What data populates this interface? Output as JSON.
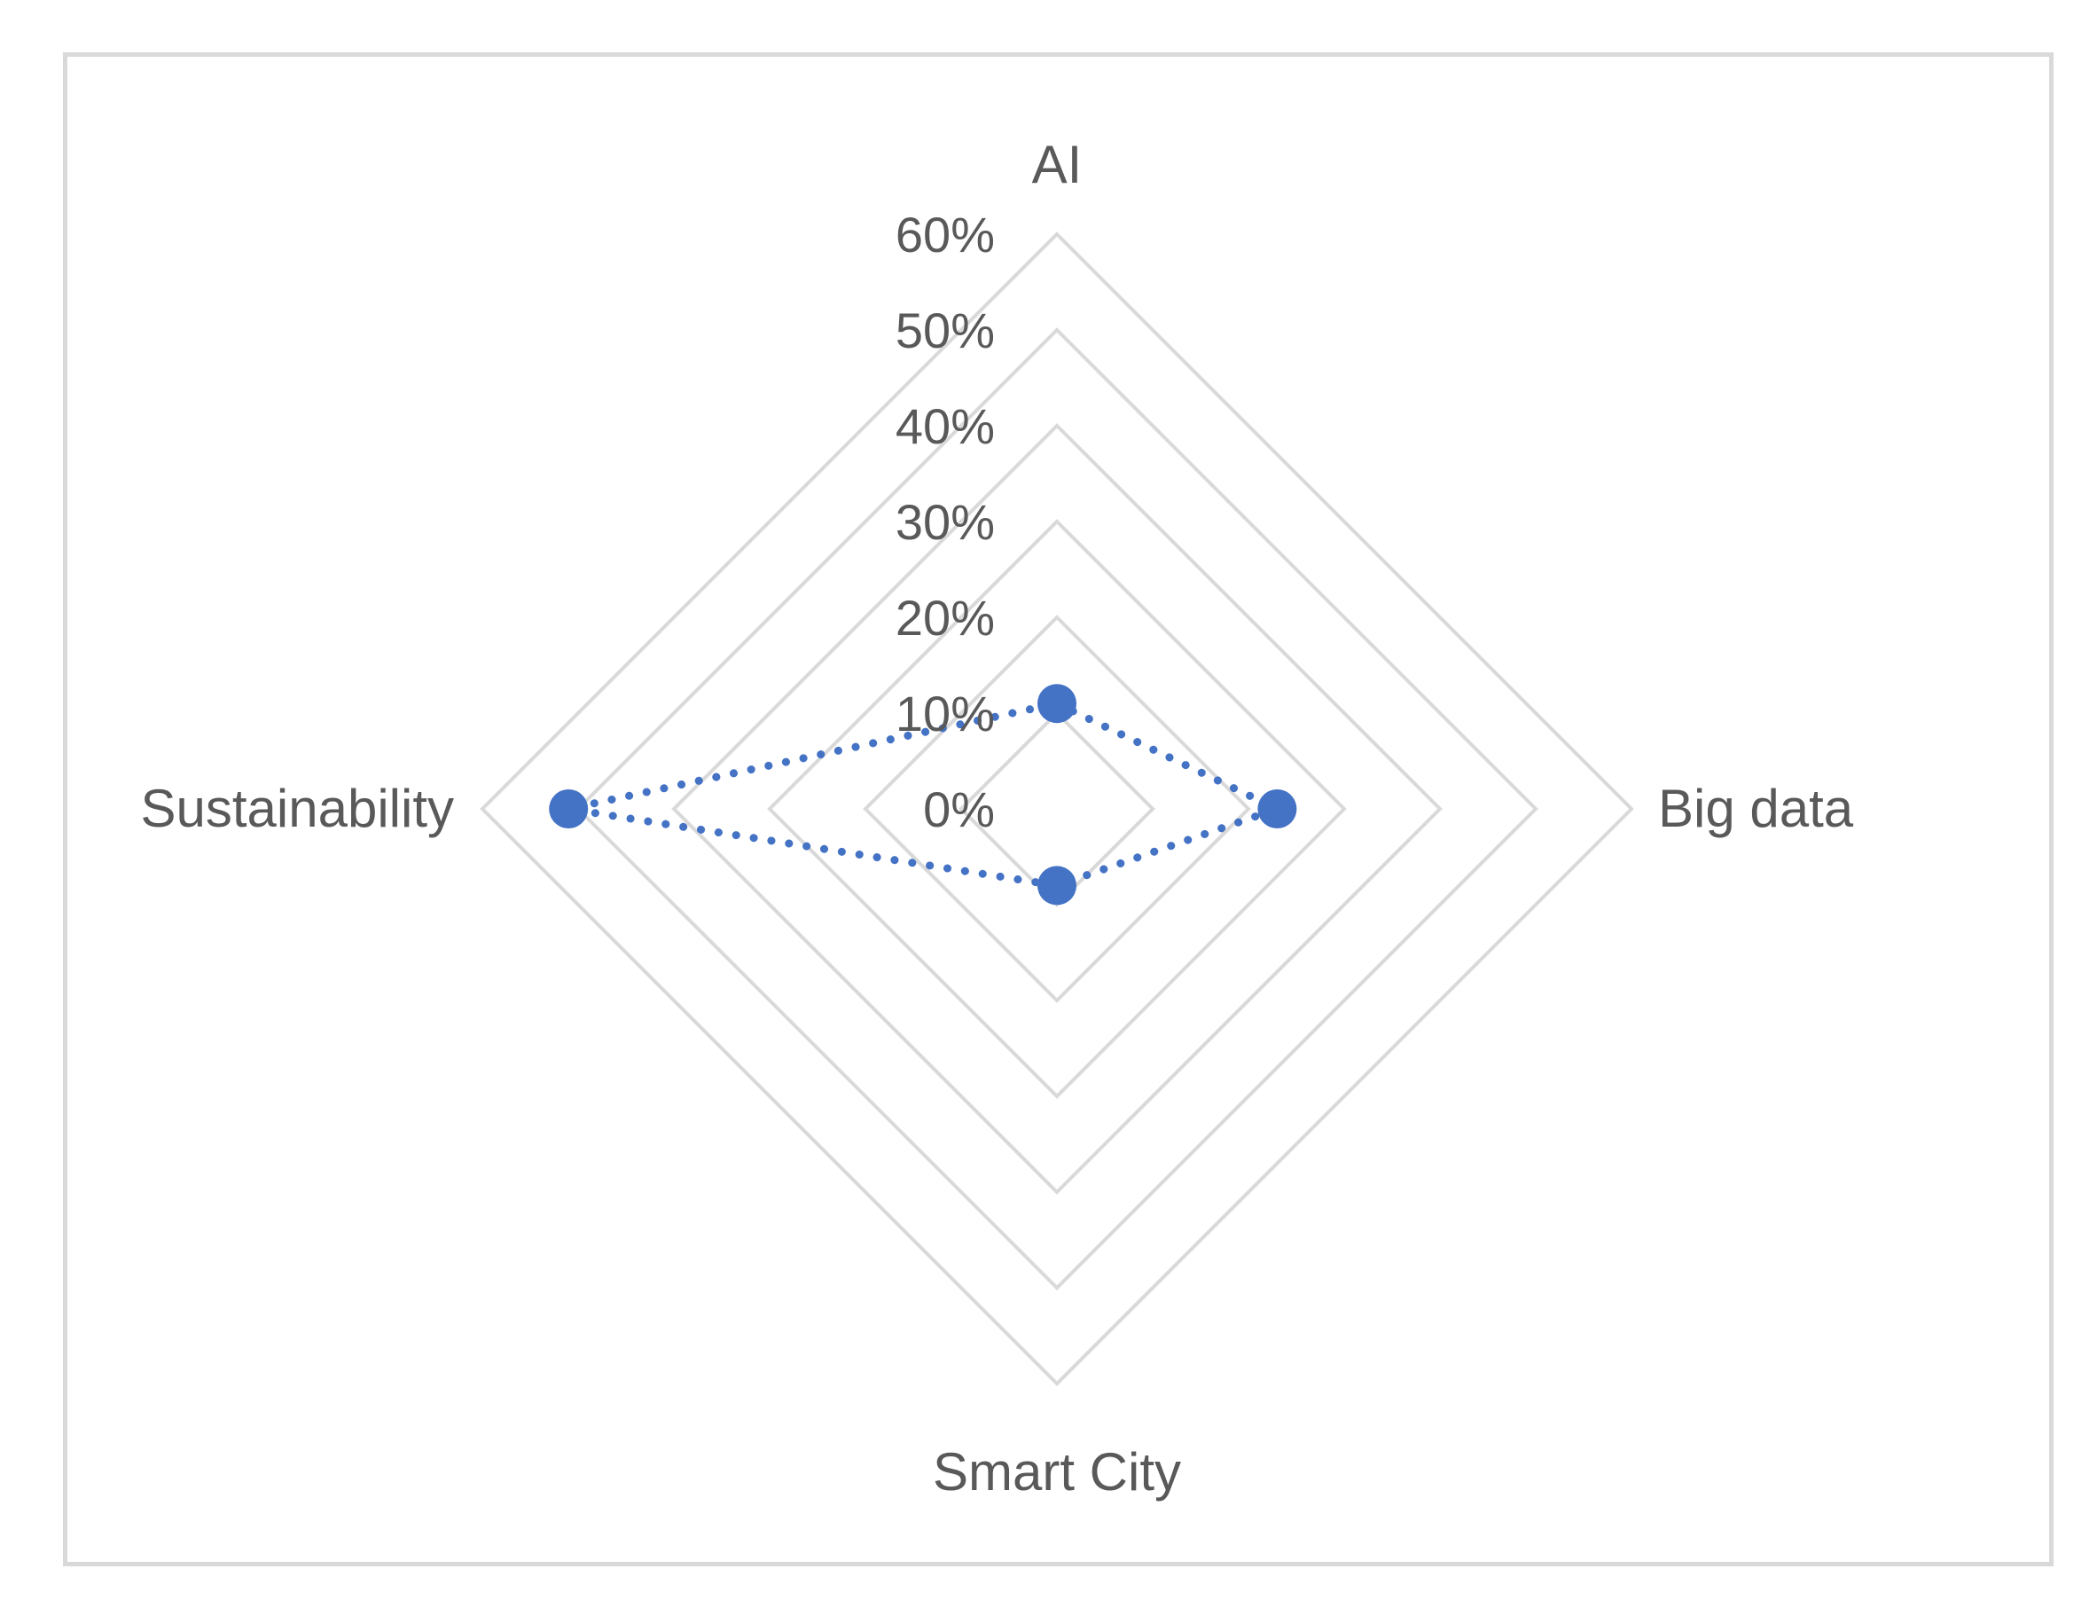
{
  "chart_data": {
    "type": "radar",
    "axes": [
      "AI",
      "Big data",
      "Smart City",
      "Sustainability"
    ],
    "rlim": [
      0,
      0.6
    ],
    "ticks": [
      0,
      0.1,
      0.2,
      0.3,
      0.4,
      0.5,
      0.6
    ],
    "tick_labels": [
      "0%",
      "10%",
      "20%",
      "30%",
      "40%",
      "50%",
      "60%"
    ],
    "series": [
      {
        "values": [
          0.11,
          0.23,
          0.08,
          0.51
        ],
        "color": "#4472c4",
        "line_style": "dotted",
        "marker": "circle"
      }
    ],
    "grid": true,
    "legend": "none"
  }
}
